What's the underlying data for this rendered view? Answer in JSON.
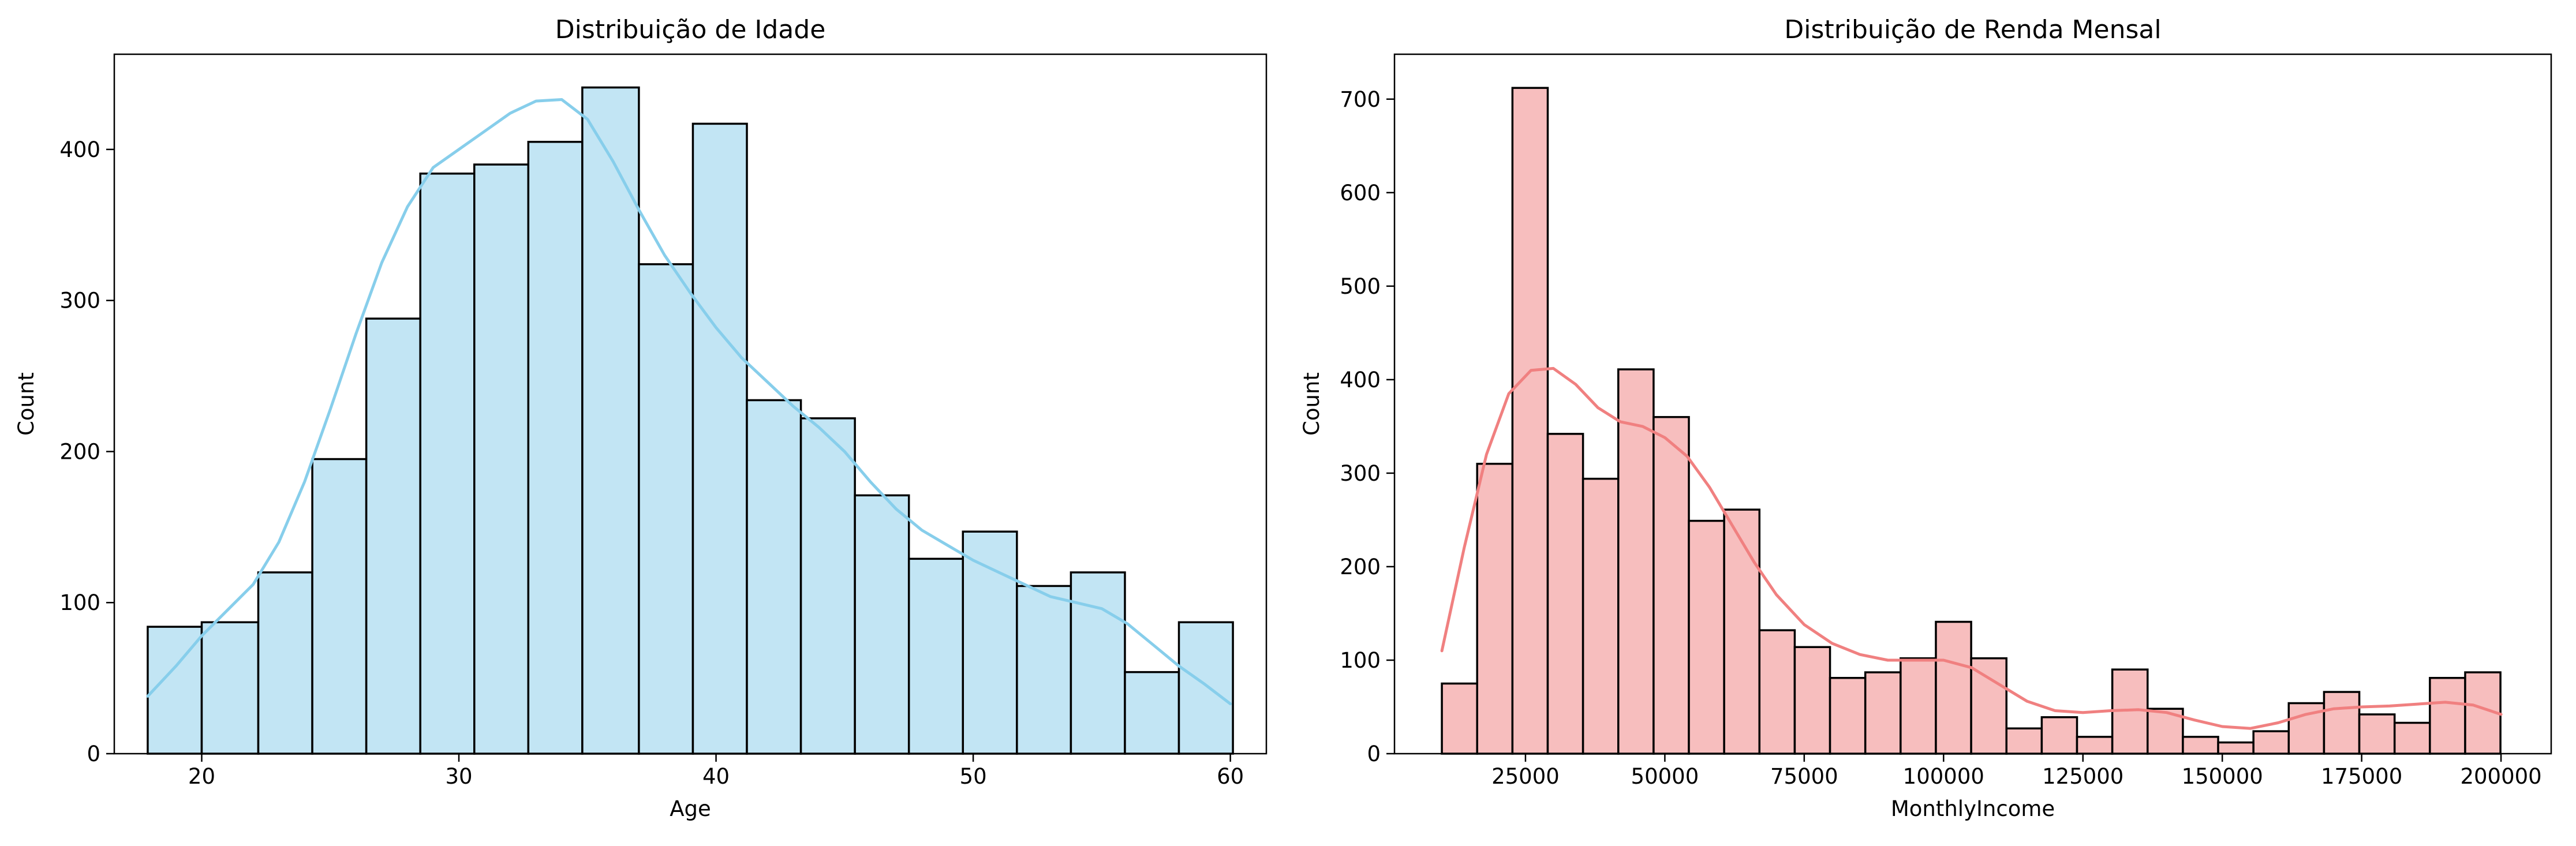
{
  "chart_data": [
    {
      "type": "bar",
      "subtype": "histogram-with-kde",
      "title": "Distribuição de Idade",
      "xlabel": "Age",
      "ylabel": "Count",
      "xlim": [
        16.6,
        61.4
      ],
      "ylim": [
        0,
        463
      ],
      "xticks": [
        20,
        30,
        40,
        50,
        60
      ],
      "yticks": [
        0,
        100,
        200,
        300,
        400
      ],
      "bar_color": "#C2E5F4",
      "kde_color": "#87CEEB",
      "bins": [
        {
          "x0": 17.9,
          "x1": 20.0,
          "count": 84
        },
        {
          "x0": 20.0,
          "x1": 22.2,
          "count": 87
        },
        {
          "x0": 22.2,
          "x1": 24.3,
          "count": 120
        },
        {
          "x0": 24.3,
          "x1": 26.4,
          "count": 195
        },
        {
          "x0": 26.4,
          "x1": 28.5,
          "count": 288
        },
        {
          "x0": 28.5,
          "x1": 30.6,
          "count": 384
        },
        {
          "x0": 30.6,
          "x1": 32.7,
          "count": 390
        },
        {
          "x0": 32.7,
          "x1": 34.8,
          "count": 405
        },
        {
          "x0": 34.8,
          "x1": 37.0,
          "count": 441
        },
        {
          "x0": 37.0,
          "x1": 39.1,
          "count": 324
        },
        {
          "x0": 39.1,
          "x1": 41.2,
          "count": 417
        },
        {
          "x0": 41.2,
          "x1": 43.3,
          "count": 234
        },
        {
          "x0": 43.3,
          "x1": 45.4,
          "count": 222
        },
        {
          "x0": 45.4,
          "x1": 47.5,
          "count": 171
        },
        {
          "x0": 47.5,
          "x1": 49.6,
          "count": 129
        },
        {
          "x0": 49.6,
          "x1": 51.7,
          "count": 147
        },
        {
          "x0": 51.7,
          "x1": 53.8,
          "count": 111
        },
        {
          "x0": 53.8,
          "x1": 55.9,
          "count": 120
        },
        {
          "x0": 55.9,
          "x1": 58.0,
          "count": 54
        },
        {
          "x0": 58.0,
          "x1": 60.1,
          "count": 87
        }
      ],
      "kde": {
        "x": [
          17.9,
          19,
          20,
          21,
          22,
          23,
          24,
          25,
          26,
          27,
          28,
          29,
          30,
          31,
          32,
          33,
          34,
          35,
          36,
          37,
          38,
          39,
          40,
          41,
          42,
          43,
          44,
          45,
          46,
          47,
          48,
          49,
          50,
          51,
          52,
          53,
          54,
          55,
          56,
          57,
          58,
          59,
          60
        ],
        "y": [
          38,
          58,
          78,
          95,
          112,
          140,
          180,
          228,
          278,
          325,
          362,
          388,
          400,
          412,
          424,
          432,
          433,
          420,
          392,
          360,
          330,
          305,
          282,
          262,
          246,
          230,
          216,
          200,
          180,
          162,
          148,
          138,
          128,
          120,
          112,
          104,
          100,
          96,
          86,
          72,
          58,
          46,
          33
        ]
      }
    },
    {
      "type": "bar",
      "subtype": "histogram-with-kde",
      "title": "Distribuição de Renda Mensal",
      "xlabel": "MonthlyIncome",
      "ylabel": "Count",
      "xlim": [
        1500,
        209000
      ],
      "ylim": [
        0,
        748
      ],
      "xticks": [
        25000,
        50000,
        75000,
        100000,
        125000,
        150000,
        175000,
        200000
      ],
      "yticks": [
        0,
        100,
        200,
        300,
        400,
        500,
        600,
        700
      ],
      "bar_color": "#F7BEBE",
      "kde_color": "#F08080",
      "bins": [
        {
          "x0": 10000,
          "x1": 16330,
          "count": 75
        },
        {
          "x0": 16330,
          "x1": 22660,
          "count": 310
        },
        {
          "x0": 22660,
          "x1": 28990,
          "count": 712
        },
        {
          "x0": 28990,
          "x1": 35320,
          "count": 342
        },
        {
          "x0": 35320,
          "x1": 41650,
          "count": 294
        },
        {
          "x0": 41650,
          "x1": 47980,
          "count": 411
        },
        {
          "x0": 47980,
          "x1": 54310,
          "count": 360
        },
        {
          "x0": 54310,
          "x1": 60640,
          "count": 249
        },
        {
          "x0": 60640,
          "x1": 66970,
          "count": 261
        },
        {
          "x0": 66970,
          "x1": 73300,
          "count": 132
        },
        {
          "x0": 73300,
          "x1": 79630,
          "count": 114
        },
        {
          "x0": 79630,
          "x1": 85960,
          "count": 81
        },
        {
          "x0": 85960,
          "x1": 92290,
          "count": 87
        },
        {
          "x0": 92290,
          "x1": 98620,
          "count": 102
        },
        {
          "x0": 98620,
          "x1": 104950,
          "count": 141
        },
        {
          "x0": 104950,
          "x1": 111280,
          "count": 102
        },
        {
          "x0": 111280,
          "x1": 117610,
          "count": 27
        },
        {
          "x0": 117610,
          "x1": 123940,
          "count": 39
        },
        {
          "x0": 123940,
          "x1": 130270,
          "count": 18
        },
        {
          "x0": 130270,
          "x1": 136600,
          "count": 90
        },
        {
          "x0": 136600,
          "x1": 142930,
          "count": 48
        },
        {
          "x0": 142930,
          "x1": 149260,
          "count": 18
        },
        {
          "x0": 149260,
          "x1": 155590,
          "count": 12
        },
        {
          "x0": 155590,
          "x1": 161920,
          "count": 24
        },
        {
          "x0": 161920,
          "x1": 168250,
          "count": 54
        },
        {
          "x0": 168250,
          "x1": 174580,
          "count": 66
        },
        {
          "x0": 174580,
          "x1": 180910,
          "count": 42
        },
        {
          "x0": 180910,
          "x1": 187240,
          "count": 33
        },
        {
          "x0": 187240,
          "x1": 193570,
          "count": 81
        },
        {
          "x0": 193570,
          "x1": 199900,
          "count": 87
        }
      ],
      "kde": {
        "x": [
          10000,
          14000,
          18000,
          22000,
          26000,
          30000,
          34000,
          38000,
          42000,
          46000,
          50000,
          54000,
          58000,
          62000,
          66000,
          70000,
          75000,
          80000,
          85000,
          90000,
          95000,
          100000,
          105000,
          110000,
          115000,
          120000,
          125000,
          130000,
          135000,
          140000,
          145000,
          150000,
          155000,
          160000,
          165000,
          170000,
          175000,
          180000,
          185000,
          190000,
          195000,
          200000
        ],
        "y": [
          110,
          220,
          320,
          385,
          410,
          412,
          395,
          370,
          355,
          350,
          338,
          318,
          285,
          245,
          205,
          170,
          138,
          118,
          106,
          100,
          100,
          100,
          92,
          74,
          56,
          46,
          44,
          46,
          47,
          44,
          36,
          29,
          27,
          33,
          42,
          48,
          50,
          51,
          53,
          55,
          52,
          42
        ]
      }
    }
  ]
}
